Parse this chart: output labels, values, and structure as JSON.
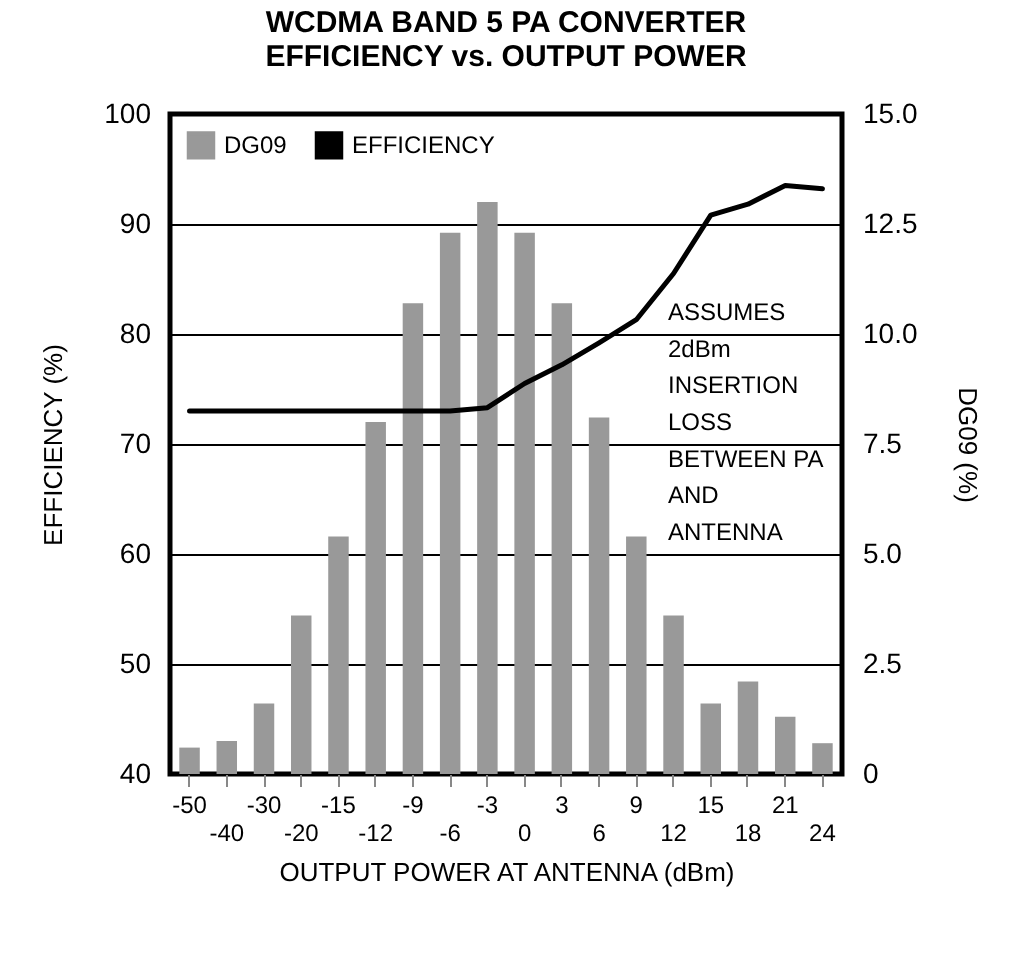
{
  "chart_data": {
    "type": "bar",
    "title": "WCDMA BAND 5 PA CONVERTER\nEFFICIENCY vs. OUTPUT POWER",
    "xlabel": "OUTPUT POWER AT ANTENNA (dBm)",
    "ylabel": "EFFICIENCY (%)",
    "y2label": "DG09 (%)",
    "categories": [
      "-50",
      "-40",
      "-30",
      "-20",
      "-15",
      "-12",
      "-9",
      "-6",
      "-3",
      "0",
      "3",
      "6",
      "9",
      "12",
      "15",
      "18",
      "21",
      "24"
    ],
    "series": [
      {
        "name": "DG09",
        "type": "bar",
        "axis": "y2",
        "color": "#999999",
        "values": [
          0.6,
          0.75,
          1.6,
          3.6,
          5.4,
          8.0,
          10.7,
          12.3,
          13.0,
          12.3,
          10.7,
          8.1,
          5.4,
          3.6,
          1.6,
          2.1,
          1.3,
          0.7
        ]
      },
      {
        "name": "EFFICIENCY",
        "type": "line",
        "color": "#000000",
        "values": [
          73,
          73,
          73,
          73,
          73,
          73,
          73,
          73,
          73.3,
          75.5,
          77.2,
          79.2,
          81.3,
          85.5,
          90.8,
          91.8,
          93.5,
          93.2
        ]
      }
    ],
    "ylim": [
      40,
      100
    ],
    "yticks": [
      40,
      50,
      60,
      70,
      80,
      90,
      100
    ],
    "y2lim": [
      0,
      15
    ],
    "y2ticks": [
      0,
      2.5,
      {
        "value": 5,
        "label": "5.0"
      },
      {
        "value": 7.5,
        "label": "7.5"
      },
      {
        "value": 10,
        "label": "10.0"
      },
      {
        "value": 12.5,
        "label": "12.5"
      },
      {
        "value": 15,
        "label": "15.0"
      }
    ],
    "grid": "y",
    "legend": "top left",
    "annotations": [
      "ASSUMES\n2dBm\nINSERTION\nLOSS\nBETWEEN PA\nAND\nANTENNA"
    ]
  }
}
